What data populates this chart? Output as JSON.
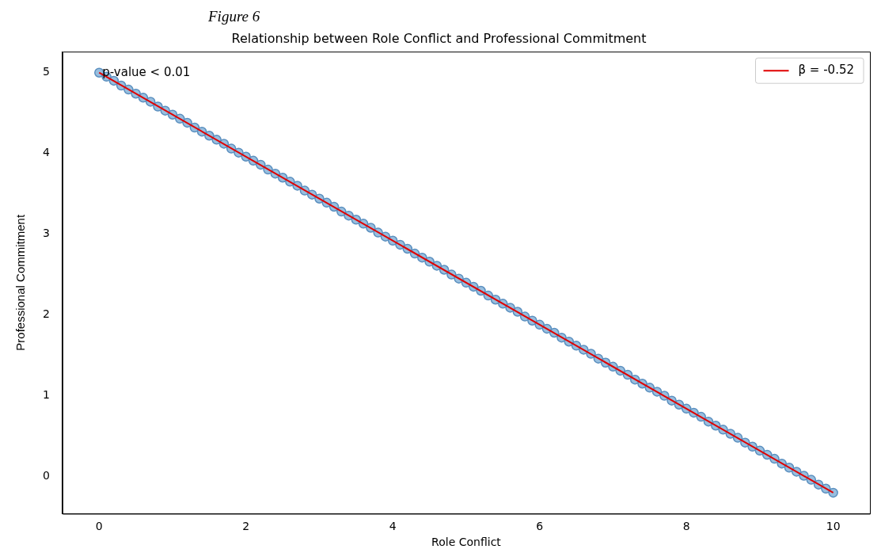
{
  "chart_data": {
    "type": "scatter",
    "title": "Relationship between Role Conflict and Professional Commitment",
    "xlabel": "Role Conflict",
    "ylabel": "Professional Commitment",
    "annotations": [
      "Figure 6",
      {
        "text": "p-value < 0.01",
        "x": 0,
        "y": 5
      }
    ],
    "xlim": [
      -0.5,
      10.5
    ],
    "xticks": [
      0,
      2,
      4,
      6,
      8,
      10
    ],
    "ylim": [
      -0.46,
      5.26
    ],
    "yticks": [
      0,
      1,
      2,
      3,
      4,
      5
    ],
    "grid": false,
    "legend": "top right",
    "series": [
      {
        "color": "#7eaed6",
        "marker": "circle",
        "x": [
          0,
          0.1,
          0.2,
          0.3,
          0.4,
          0.5,
          0.6,
          0.7,
          0.8,
          0.9,
          1,
          1.1,
          1.2,
          1.3,
          1.4,
          1.5,
          1.6,
          1.7,
          1.8,
          1.9,
          2,
          2.1,
          2.2,
          2.3,
          2.4,
          2.5,
          2.6,
          2.7,
          2.8,
          2.9,
          3,
          3.1,
          3.2,
          3.3,
          3.4,
          3.5,
          3.6,
          3.7,
          3.8,
          3.9,
          4,
          4.1,
          4.2,
          4.3,
          4.4,
          4.5,
          4.6,
          4.7,
          4.8,
          4.9,
          5,
          5.1,
          5.2,
          5.3,
          5.4,
          5.5,
          5.6,
          5.7,
          5.8,
          5.9,
          6,
          6.1,
          6.2,
          6.3,
          6.4,
          6.5,
          6.6,
          6.7,
          6.8,
          6.9,
          7,
          7.1,
          7.2,
          7.3,
          7.4,
          7.5,
          7.6,
          7.7,
          7.8,
          7.9,
          8,
          8.1,
          8.2,
          8.3,
          8.4,
          8.5,
          8.6,
          8.7,
          8.8,
          8.9,
          9,
          9.1,
          9.2,
          9.3,
          9.4,
          9.5,
          9.6,
          9.7,
          9.8,
          9.9,
          10
        ],
        "values": [
          5,
          4.95,
          4.9,
          4.84,
          4.79,
          4.74,
          4.69,
          4.64,
          4.58,
          4.53,
          4.48,
          4.43,
          4.38,
          4.32,
          4.27,
          4.22,
          4.17,
          4.12,
          4.06,
          4.01,
          3.96,
          3.91,
          3.86,
          3.8,
          3.75,
          3.7,
          3.65,
          3.6,
          3.54,
          3.49,
          3.44,
          3.39,
          3.34,
          3.28,
          3.23,
          3.18,
          3.13,
          3.08,
          3.02,
          2.97,
          2.92,
          2.87,
          2.82,
          2.76,
          2.71,
          2.66,
          2.61,
          2.56,
          2.5,
          2.45,
          2.4,
          2.35,
          2.3,
          2.24,
          2.19,
          2.14,
          2.09,
          2.04,
          1.98,
          1.93,
          1.88,
          1.83,
          1.78,
          1.72,
          1.67,
          1.62,
          1.57,
          1.52,
          1.46,
          1.41,
          1.36,
          1.31,
          1.26,
          1.2,
          1.15,
          1.1,
          1.05,
          1,
          0.94,
          0.89,
          0.84,
          0.79,
          0.74,
          0.68,
          0.63,
          0.58,
          0.53,
          0.48,
          0.42,
          0.37,
          0.32,
          0.27,
          0.22,
          0.16,
          0.11,
          0.06,
          0.01,
          -0.04,
          -0.1,
          -0.15,
          -0.2
        ]
      },
      {
        "type": "line",
        "name": "β = -0.52",
        "color": "#e00000",
        "line_style": "solid",
        "marker": "none",
        "x": [
          0,
          10
        ],
        "values": [
          5,
          -0.2
        ]
      }
    ]
  }
}
